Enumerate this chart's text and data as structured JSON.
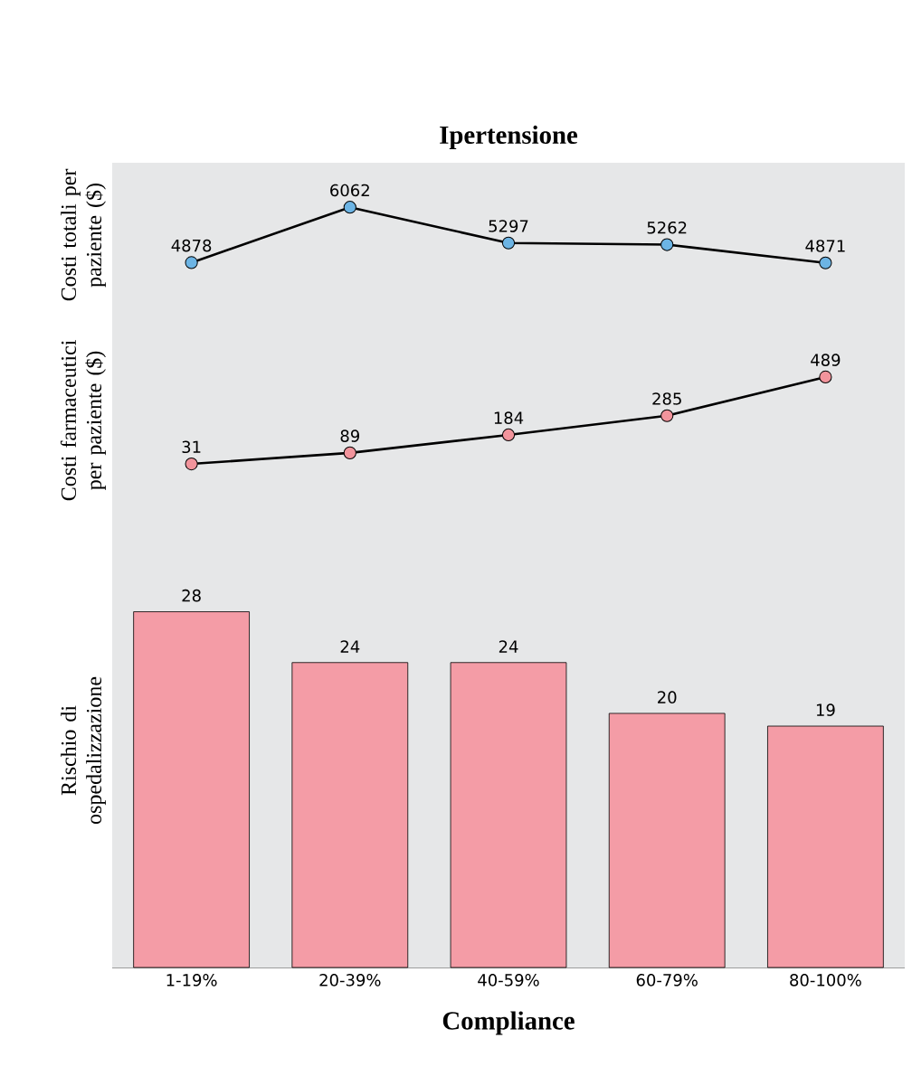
{
  "chart_data": [
    {
      "type": "line",
      "title": "Ipertensione",
      "ylabel": "Costi totali per paziente ($)",
      "categories": [
        null,
        null,
        null,
        null,
        null
      ],
      "series": [
        {
          "color": "#000000",
          "colors": [
            "#6cb4e4",
            "#6cb4e4",
            "#6cb4e4",
            "#6cb4e4",
            "#6cb4e4"
          ],
          "values": [
            4878,
            6062,
            5297,
            5262,
            4871
          ]
        }
      ],
      "marker": "circle",
      "data_labels": true,
      "tick_labels": false
    },
    {
      "type": "line",
      "ylabel": "Costi farmaceutici per paziente ($)",
      "categories": [
        null,
        null,
        null,
        null,
        null
      ],
      "series": [
        {
          "color": "#000000",
          "colors": [
            "#f2949c",
            "#f2949c",
            "#f2949c",
            "#f2949c",
            "#f2949c"
          ],
          "values": [
            31,
            89,
            184,
            285,
            489
          ]
        }
      ],
      "marker": "circle",
      "data_labels": true,
      "tick_labels": false
    },
    {
      "type": "bar",
      "ylabel": "Rischio di ospedalizzazione",
      "xlabel": "Compliance",
      "categories": [
        "1-19%",
        "20-39%",
        "40-59%",
        "60-79%",
        "80-100%"
      ],
      "series": [
        {
          "color": "#f49ca6",
          "values": [
            28,
            24,
            24,
            20,
            19
          ]
        }
      ],
      "data_labels": true,
      "tick_labels": "x"
    }
  ]
}
